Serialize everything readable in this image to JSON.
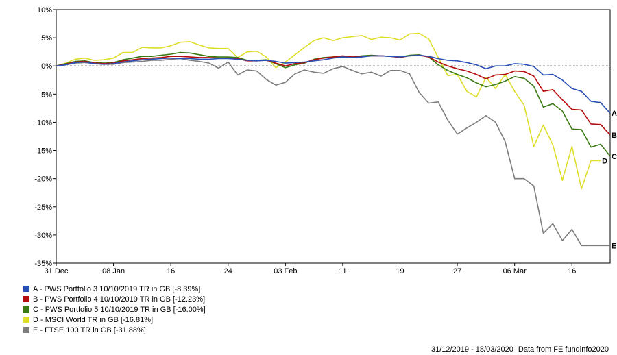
{
  "chart_data": {
    "type": "line",
    "ylim": [
      -35,
      10
    ],
    "y_ticks": [
      10,
      5,
      0,
      -5,
      -10,
      -15,
      -20,
      -25,
      -30,
      -35
    ],
    "y_tick_labels": [
      "10%",
      "5%",
      "0%",
      "-5%",
      "-10%",
      "-15%",
      "-20%",
      "-25%",
      "-30%",
      "-35%"
    ],
    "xlim": [
      0,
      58
    ],
    "x_ticks": [
      0,
      6,
      12,
      18,
      24,
      30,
      36,
      42,
      48,
      54
    ],
    "x_tick_labels": [
      "31 Dec",
      "08 Jan",
      "16",
      "24",
      "03 Feb",
      "11",
      "19",
      "27",
      "06 Mar",
      "16"
    ],
    "zero_line": true,
    "legend_position": "bottom-left",
    "series": [
      {
        "name": "A - PWS Portfolio 3 10/10/2019 TR in GB [-8.39%]",
        "end_label": "A",
        "color": "#2a4fb5",
        "x": [
          0,
          1,
          2,
          3,
          4,
          5,
          6,
          7,
          8,
          9,
          10,
          11,
          12,
          13,
          14,
          15,
          16,
          17,
          18,
          19,
          20,
          21,
          22,
          23,
          24,
          25,
          26,
          27,
          28,
          29,
          30,
          31,
          32,
          33,
          34,
          35,
          36,
          37,
          38,
          39,
          40,
          41,
          42,
          43,
          44,
          45,
          46,
          47,
          48,
          49,
          50,
          51,
          52,
          53,
          54,
          55,
          56,
          57,
          58
        ],
        "values": [
          0,
          0.2,
          0.6,
          0.7,
          0.4,
          0.3,
          0.4,
          0.7,
          0.9,
          1.1,
          1.2,
          1.3,
          1.4,
          1.3,
          1.3,
          1.2,
          1.2,
          1.3,
          1.3,
          1.2,
          1.0,
          0.9,
          1.0,
          0.8,
          0.5,
          0.6,
          0.7,
          0.9,
          1.1,
          1.4,
          1.6,
          1.5,
          1.6,
          1.8,
          1.8,
          1.7,
          1.6,
          1.8,
          1.9,
          1.7,
          1.3,
          1.0,
          0.9,
          0.6,
          0.2,
          -0.5,
          0,
          0,
          0.4,
          0.3,
          -0.1,
          -1.6,
          -1.5,
          -2.5,
          -4.0,
          -4.5,
          -6.3,
          -6.5,
          -8.39
        ]
      },
      {
        "name": "B - PWS Portfolio 4 10/10/2019 TR in GB [-12.23%]",
        "end_label": "B",
        "color": "#b50d0d",
        "x": [
          0,
          1,
          2,
          3,
          4,
          5,
          6,
          7,
          8,
          9,
          10,
          11,
          12,
          13,
          14,
          15,
          16,
          17,
          18,
          19,
          20,
          21,
          22,
          23,
          24,
          25,
          26,
          27,
          28,
          29,
          30,
          31,
          32,
          33,
          34,
          35,
          36,
          37,
          38,
          39,
          40,
          41,
          42,
          43,
          44,
          45,
          46,
          47,
          48,
          49,
          50,
          51,
          52,
          53,
          54,
          55,
          56,
          57,
          58
        ],
        "values": [
          0,
          0.3,
          0.7,
          0.8,
          0.5,
          0.4,
          0.5,
          0.9,
          1.1,
          1.3,
          1.4,
          1.5,
          1.7,
          1.7,
          1.6,
          1.5,
          1.5,
          1.4,
          1.4,
          1.3,
          0.9,
          0.9,
          1.0,
          0.5,
          0,
          0.4,
          0.6,
          1.1,
          1.4,
          1.6,
          1.8,
          1.6,
          1.7,
          1.8,
          1.8,
          1.7,
          1.5,
          1.8,
          1.9,
          1.6,
          0.7,
          0,
          -0.5,
          -0.9,
          -1.5,
          -2.3,
          -1.6,
          -1.5,
          -0.9,
          -1.0,
          -1.8,
          -4.5,
          -4.2,
          -6.0,
          -7.7,
          -7.8,
          -10.3,
          -10.4,
          -12.23
        ]
      },
      {
        "name": "C - PWS Portfolio 5 10/10/2019 TR in GB [-16.00%]",
        "end_label": "C",
        "color": "#3a7a12",
        "x": [
          0,
          1,
          2,
          3,
          4,
          5,
          6,
          7,
          8,
          9,
          10,
          11,
          12,
          13,
          14,
          15,
          16,
          17,
          18,
          19,
          20,
          21,
          22,
          23,
          24,
          25,
          26,
          27,
          28,
          29,
          30,
          31,
          32,
          33,
          34,
          35,
          36,
          37,
          38,
          39,
          40,
          41,
          42,
          43,
          44,
          45,
          46,
          47,
          48,
          49,
          50,
          51,
          52,
          53,
          54,
          55,
          56,
          57,
          58
        ],
        "values": [
          0,
          0.4,
          0.8,
          0.9,
          0.6,
          0.5,
          0.6,
          1.1,
          1.4,
          1.7,
          1.7,
          1.9,
          2.1,
          2.4,
          2.3,
          2.0,
          1.7,
          1.6,
          1.6,
          1.5,
          1.0,
          1.0,
          1.1,
          0.4,
          -0.3,
          0.2,
          0.5,
          1.2,
          1.5,
          1.6,
          1.7,
          1.6,
          1.8,
          1.9,
          1.8,
          1.7,
          1.6,
          1.9,
          2.0,
          1.6,
          0.2,
          -0.8,
          -1.5,
          -2.1,
          -3.0,
          -3.7,
          -3.3,
          -2.7,
          -1.9,
          -2.2,
          -3.6,
          -7.3,
          -6.7,
          -8.0,
          -11.2,
          -11.3,
          -14.4,
          -13.9,
          -16.0
        ]
      },
      {
        "name": "D - MSCI World TR in GB [-16.81%]",
        "end_label": "D",
        "color": "#dede2a",
        "x": [
          0,
          1,
          2,
          3,
          4,
          5,
          6,
          7,
          8,
          9,
          10,
          11,
          12,
          13,
          14,
          15,
          16,
          17,
          18,
          19,
          20,
          21,
          22,
          23,
          24,
          25,
          26,
          27,
          28,
          29,
          30,
          31,
          32,
          33,
          34,
          35,
          36,
          37,
          38,
          39,
          40,
          41,
          42,
          43,
          44,
          45,
          46,
          47,
          48,
          49,
          50,
          51,
          52,
          53,
          54,
          55,
          56,
          57
        ],
        "values": [
          0,
          0.5,
          1.2,
          1.4,
          1.0,
          1.1,
          1.4,
          2.4,
          2.4,
          3.3,
          3.2,
          3.2,
          3.6,
          4.2,
          4.3,
          3.7,
          3.2,
          3.1,
          3.1,
          1.5,
          2.5,
          2.6,
          1.6,
          -0.3,
          0.7,
          2.0,
          3.3,
          4.5,
          5.0,
          4.5,
          5.0,
          5.2,
          5.4,
          4.7,
          5.1,
          5.0,
          4.6,
          5.7,
          5.8,
          4.8,
          1.5,
          -1.7,
          -1.5,
          -4.5,
          -5.5,
          -2.0,
          -4.0,
          -1.5,
          -4.5,
          -7.0,
          -14.3,
          -10.5,
          -14.0,
          -20.3,
          -14.3,
          -21.8,
          -16.81,
          -16.81
        ]
      },
      {
        "name": "E - FTSE 100 TR in GB [-31.88%]",
        "end_label": "E",
        "color": "#7d7d7d",
        "x": [
          0,
          1,
          2,
          3,
          4,
          5,
          6,
          7,
          8,
          9,
          10,
          11,
          12,
          13,
          14,
          15,
          16,
          17,
          18,
          19,
          20,
          21,
          22,
          23,
          24,
          25,
          26,
          27,
          28,
          29,
          30,
          31,
          32,
          33,
          34,
          35,
          36,
          37,
          38,
          39,
          40,
          41,
          42,
          43,
          44,
          45,
          46,
          47,
          48,
          49,
          50,
          51,
          52,
          53,
          54,
          55,
          56,
          57,
          58
        ],
        "values": [
          0,
          0.2,
          0.5,
          0.6,
          0.4,
          0.3,
          0.3,
          0.6,
          0.7,
          0.8,
          1.0,
          1.0,
          1.2,
          1.3,
          1.0,
          0.8,
          0.5,
          -0.4,
          0.7,
          -1.6,
          -0.7,
          -0.9,
          -2.4,
          -3.4,
          -2.9,
          -1.4,
          -0.7,
          -1.1,
          -1.3,
          -0.5,
          -0.1,
          -0.8,
          -1.4,
          -1.1,
          -1.8,
          -0.8,
          -0.8,
          -1.4,
          -4.7,
          -6.6,
          -6.4,
          -9.6,
          -12.1,
          -11.0,
          -10.0,
          -8.8,
          -10.0,
          -13.4,
          -20.0,
          -20.0,
          -21.3,
          -29.7,
          -28.0,
          -31.0,
          -29.0,
          -31.88,
          -31.88,
          -31.88,
          -31.88
        ]
      }
    ],
    "annotation": [
      "31/12/2019 - 18/03/2020",
      "Data from FE fundinfo2020"
    ]
  }
}
